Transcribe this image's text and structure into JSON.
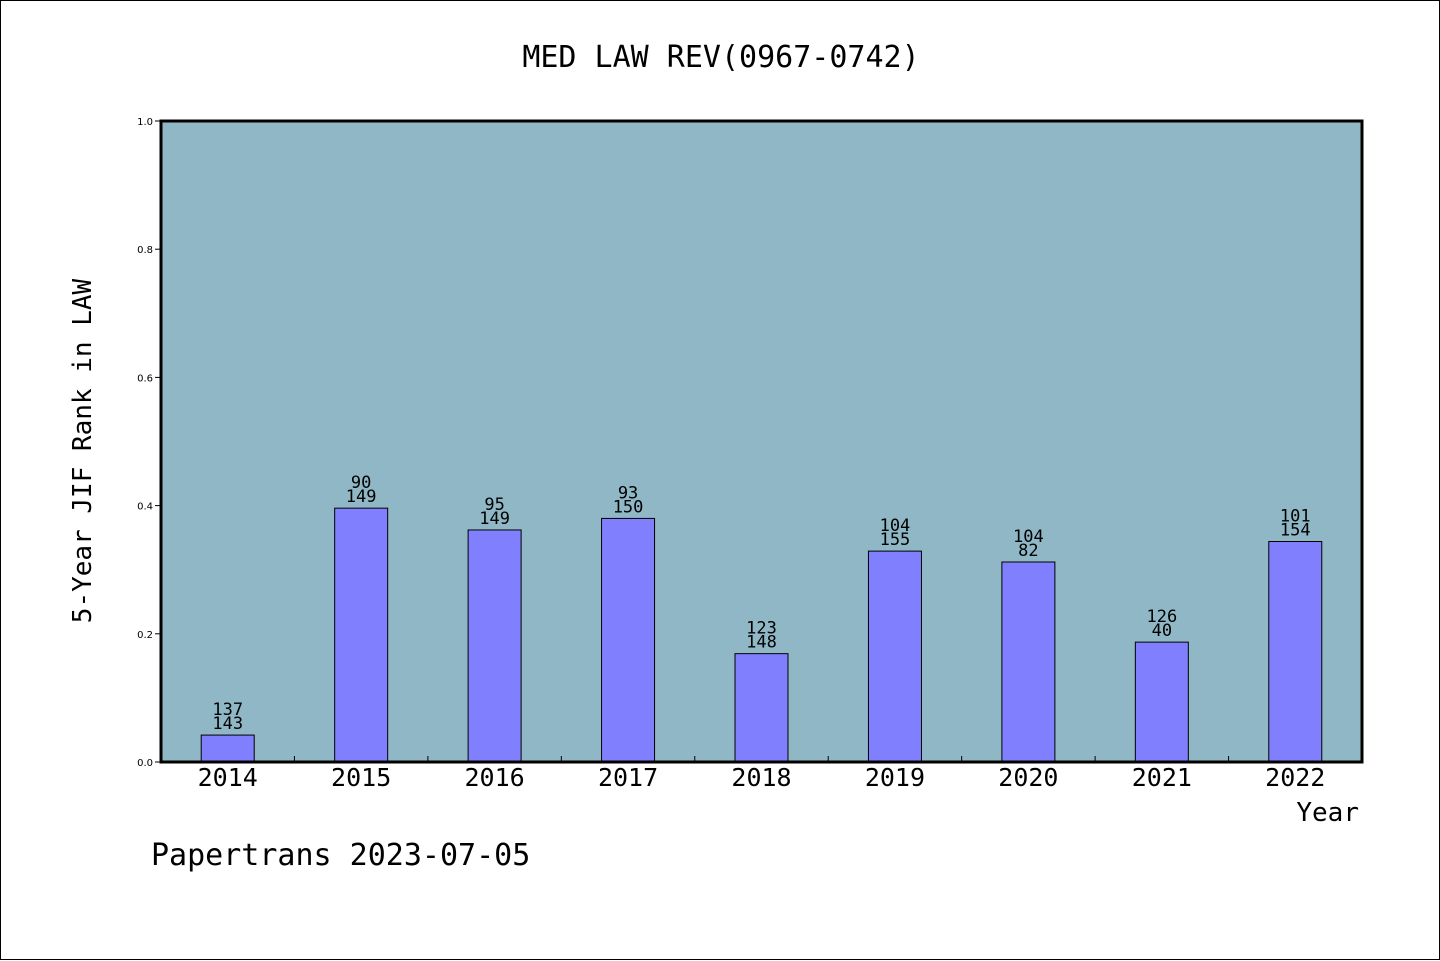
{
  "chart_data": {
    "type": "bar",
    "title": "MED LAW REV(0967-0742)",
    "xlabel": "Year",
    "ylabel": "5-Year JIF Rank in LAW",
    "ylim": [
      0,
      1.0
    ],
    "yticks": [
      "0.0",
      "0.2",
      "0.4",
      "0.6",
      "0.8",
      "1.0"
    ],
    "categories": [
      "2014",
      "2015",
      "2016",
      "2017",
      "2018",
      "2019",
      "2020",
      "2021",
      "2022"
    ],
    "values": [
      0.042,
      0.396,
      0.362,
      0.38,
      0.169,
      0.329,
      0.312,
      0.187,
      0.344
    ],
    "labels_top": [
      "137",
      "90",
      "95",
      "93",
      "123",
      "104",
      "104",
      "126",
      "101"
    ],
    "labels_bottom": [
      "143",
      "149",
      "149",
      "150",
      "148",
      "155",
      "82",
      "40",
      "154"
    ],
    "grid": false,
    "colors": {
      "plot_bg": "#8fb7c5",
      "bar": "#8080ff"
    }
  },
  "footer": "Papertrans 2023-07-05"
}
